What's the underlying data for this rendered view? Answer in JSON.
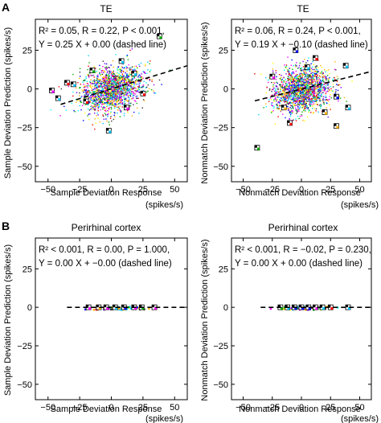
{
  "figure": {
    "panel_letters": [
      "A",
      "B"
    ]
  },
  "chart_data": [
    {
      "type": "scatter",
      "title": "TE",
      "xlabel": "Sample Deviation Response",
      "xlabel_units": "(spikes/s)",
      "ylabel": "Sample Deviation Prediction  (spikes/s)",
      "xlim": [
        -60,
        60
      ],
      "ylim": [
        -60,
        45
      ],
      "xticks": [
        -50,
        -25,
        0,
        25,
        50
      ],
      "yticks": [
        -50,
        -25,
        0,
        25
      ],
      "stats_line1": "R² = 0.05, R = 0.22, P < 0.001,",
      "stats_line2": "Y = 0.25 X + 0.00 (dashed line)",
      "regression": {
        "slope": 0.25,
        "intercept": 0.0
      },
      "cloud": {
        "center_x": 0,
        "center_y": 0,
        "spread_x": 12,
        "spread_y": 7,
        "count": 1800
      },
      "outliers": [
        {
          "x": -47,
          "y": -1
        },
        {
          "x": -42,
          "y": -6
        },
        {
          "x": -35,
          "y": 4
        },
        {
          "x": -30,
          "y": 3
        },
        {
          "x": 18,
          "y": 10
        },
        {
          "x": 25,
          "y": -3
        },
        {
          "x": 38,
          "y": 34
        },
        {
          "x": -2,
          "y": -27
        },
        {
          "x": -15,
          "y": 12
        },
        {
          "x": 12,
          "y": -12
        },
        {
          "x": -20,
          "y": -8
        },
        {
          "x": 8,
          "y": 18
        }
      ]
    },
    {
      "type": "scatter",
      "title": "TE",
      "xlabel": "Nonmatch Deviation Response",
      "xlabel_units": "(spikes/s)",
      "ylabel": "Nonmatch Deviation Prediction  (spikes/s)",
      "xlim": [
        -60,
        60
      ],
      "ylim": [
        -60,
        45
      ],
      "xticks": [
        -50,
        -25,
        0,
        25,
        50
      ],
      "yticks": [
        -50,
        -25,
        0,
        25
      ],
      "stats_line1": "R² = 0.06, R = 0.24, P < 0.001,",
      "stats_line2": "Y = 0.19 X + −0.10 (dashed line)",
      "regression": {
        "slope": 0.19,
        "intercept": -0.1
      },
      "cloud": {
        "center_x": 0,
        "center_y": 0,
        "spread_x": 12,
        "spread_y": 7,
        "count": 1800
      },
      "outliers": [
        {
          "x": -38,
          "y": -38
        },
        {
          "x": -5,
          "y": 25
        },
        {
          "x": 12,
          "y": 20
        },
        {
          "x": 30,
          "y": -5
        },
        {
          "x": 30,
          "y": -24
        },
        {
          "x": 38,
          "y": 15
        },
        {
          "x": 40,
          "y": -12
        },
        {
          "x": -10,
          "y": -22
        },
        {
          "x": -25,
          "y": 8
        },
        {
          "x": 20,
          "y": -15
        },
        {
          "x": -15,
          "y": -12
        },
        {
          "x": 5,
          "y": 14
        }
      ]
    },
    {
      "type": "scatter",
      "title": "Perirhinal cortex",
      "xlabel": "Sample Deviation Response",
      "xlabel_units": "(spikes/s)",
      "ylabel": "Sample Deviation Prediction  (spikes/s)",
      "xlim": [
        -60,
        60
      ],
      "ylim": [
        -60,
        45
      ],
      "xticks": [
        -50,
        -25,
        0,
        25,
        50
      ],
      "yticks": [
        -50,
        -25,
        0,
        25
      ],
      "stats_line1": "R² < 0.001, R = 0.00, P = 1.000,",
      "stats_line2": "Y = 0.00 X + −0.00 (dashed line)",
      "regression": {
        "slope": 0.0,
        "intercept": 0.0
      },
      "cloud": {
        "center_x": 5,
        "center_y": 0,
        "spread_x": 11,
        "spread_y": 0,
        "count": 70
      },
      "outliers": [
        {
          "x": -18,
          "y": 0
        },
        {
          "x": -10,
          "y": 0
        },
        {
          "x": -4,
          "y": 0
        },
        {
          "x": 3,
          "y": 0
        },
        {
          "x": 10,
          "y": 0
        },
        {
          "x": 18,
          "y": 0
        },
        {
          "x": 24,
          "y": 0
        },
        {
          "x": 34,
          "y": 0
        }
      ]
    },
    {
      "type": "scatter",
      "title": "Perirhinal cortex",
      "xlabel": "Nonmatch Deviation Response",
      "xlabel_units": "(spikes/s)",
      "ylabel": "Nonmatch Deviation Prediction  (spikes/s)",
      "xlim": [
        -60,
        60
      ],
      "ylim": [
        -60,
        45
      ],
      "xticks": [
        -50,
        -25,
        0,
        25,
        50
      ],
      "yticks": [
        -50,
        -25,
        0,
        25
      ],
      "stats_line1": "R² < 0.001, R = −0.02, P = 0.230,",
      "stats_line2": "Y = 0.00 X + 0.00 (dashed line)",
      "regression": {
        "slope": 0.0,
        "intercept": 0.0
      },
      "cloud": {
        "center_x": 3,
        "center_y": 0,
        "spread_x": 10,
        "spread_y": 0,
        "count": 70
      },
      "outliers": [
        {
          "x": -18,
          "y": 0
        },
        {
          "x": -12,
          "y": 0
        },
        {
          "x": -6,
          "y": 0
        },
        {
          "x": 0,
          "y": 0
        },
        {
          "x": 6,
          "y": 0
        },
        {
          "x": 12,
          "y": 0
        },
        {
          "x": 18,
          "y": 0
        },
        {
          "x": 25,
          "y": 0
        },
        {
          "x": 40,
          "y": 0
        }
      ]
    }
  ]
}
